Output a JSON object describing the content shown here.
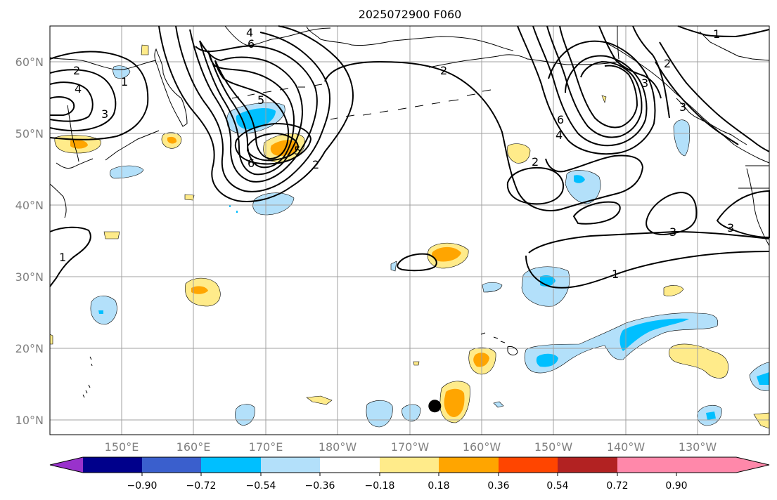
{
  "title": "2025072900 F060",
  "map": {
    "lon_ticks": [
      "150°E",
      "160°E",
      "170°E",
      "180°W",
      "170°W",
      "160°W",
      "150°W",
      "140°W",
      "130°W"
    ],
    "lat_ticks": [
      "60°N",
      "50°N",
      "40°N",
      "30°N",
      "20°N",
      "10°N"
    ],
    "projection": "PlateCarree",
    "gridlines": true,
    "extent": {
      "lon_min": 140,
      "lon_max": 240,
      "lat_min": 8,
      "lat_max": 65
    },
    "contour_labels": [
      "4",
      "6",
      "2",
      "4",
      "3",
      "1",
      "5",
      "5",
      "6",
      "2",
      "2",
      "2",
      "6",
      "4",
      "3",
      "3",
      "2",
      "1",
      "3",
      "3",
      "1",
      "1"
    ],
    "marker": {
      "type": "filled-circle",
      "lon": -166.5,
      "lat": 12,
      "color": "#000000"
    }
  },
  "colorbar": {
    "tick_labels": [
      "−0.90",
      "−0.72",
      "−0.54",
      "−0.36",
      "−0.18",
      "0.18",
      "0.36",
      "0.54",
      "0.72",
      "0.90"
    ],
    "colors": [
      "#9932cc",
      "#00008b",
      "#3a5fcd",
      "#00bfff",
      "#b3e0fa",
      "#ffffff",
      "#ffeb8a",
      "#ffa500",
      "#ff4500",
      "#b22222",
      "#ff88aa"
    ],
    "extend": "both"
  }
}
